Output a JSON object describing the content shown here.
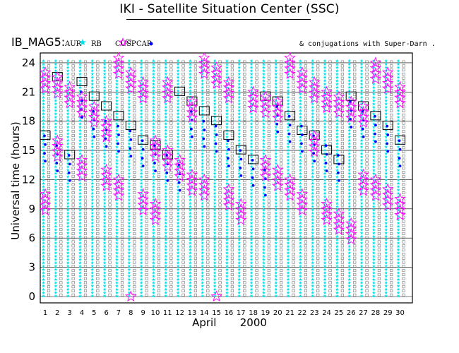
{
  "header": {
    "title": "IKI - Satellite Situation Center (SSC)"
  },
  "legend": {
    "prefix": "IB_MAG5:",
    "items": [
      {
        "label": "AUR",
        "marker": "star-filled",
        "color": "#00e5ee"
      },
      {
        "label": "RB",
        "marker": "none",
        "color": "#000000"
      },
      {
        "label": "CUSP",
        "marker": "open-square",
        "color": "#555555"
      },
      {
        "label": "CAP",
        "marker": "open-star",
        "color": "#ff00ff"
      },
      {
        "label": "",
        "marker": "dot",
        "color": "#0000ff"
      }
    ],
    "note": "& conjugations with Super-Darn ."
  },
  "colors": {
    "aur": "#00e5ee",
    "cusp": "#666666",
    "cap": "#ff00ff",
    "conj": "#0000ff",
    "axis": "#000000"
  },
  "chart_data": {
    "type": "scatter",
    "title": "IKI - Satellite Situation Center (SSC)",
    "xlabel": "April       2000",
    "ylabel": "Universal time (hours)",
    "xlim": [
      1,
      31
    ],
    "ylim": [
      0,
      24.5
    ],
    "x_ticks": [
      1,
      2,
      3,
      4,
      5,
      6,
      7,
      8,
      9,
      10,
      11,
      12,
      13,
      14,
      15,
      16,
      17,
      18,
      19,
      20,
      21,
      22,
      23,
      24,
      25,
      26,
      27,
      28,
      29,
      30
    ],
    "y_ticks": [
      0,
      3,
      6,
      9,
      12,
      15,
      18,
      21,
      24
    ],
    "grid": "horizontal",
    "series": [
      {
        "name": "AUR",
        "marker": "cyan star",
        "note": "continuous columns of passes from 0 to 24 h"
      },
      {
        "name": "CUSP",
        "marker": "open square",
        "note": "continuous columns of passes from 0 to 24 h"
      },
      {
        "name": "CAP",
        "x": [
          1,
          1,
          2,
          2,
          3,
          4,
          4,
          5,
          6,
          6,
          7,
          7,
          8,
          8,
          9,
          9,
          10,
          10,
          11,
          11,
          12,
          13,
          13,
          14,
          14,
          15,
          15,
          16,
          16,
          17,
          18,
          19,
          19,
          20,
          20,
          21,
          21,
          22,
          22,
          23,
          23,
          24,
          24,
          25,
          25,
          26,
          26,
          27,
          27,
          28,
          28,
          29,
          29,
          30,
          30
        ],
        "y": [
          10.5,
          23,
          16,
          22.5,
          21.5,
          14,
          20.5,
          19.5,
          13,
          18,
          12,
          24.5,
          0,
          23,
          10.5,
          22,
          9.5,
          16,
          15,
          22,
          14,
          12.5,
          20,
          24.5,
          12,
          0,
          23.5,
          11,
          22,
          9.5,
          21,
          14,
          20.5,
          13,
          20,
          12,
          24.5,
          10.5,
          23,
          16.5,
          22,
          9.5,
          21,
          8.5,
          20.5,
          7.5,
          20,
          12.5,
          19.5,
          12,
          24,
          11,
          23,
          10,
          21.5
        ]
      },
      {
        "name": "",
        "marker": "blue dot",
        "x": [
          1,
          2,
          3,
          4,
          5,
          6,
          7,
          8,
          9,
          10,
          11,
          12,
          13,
          14,
          15,
          16,
          17,
          18,
          19,
          20,
          21,
          22,
          23,
          24,
          25,
          26,
          27,
          28,
          29,
          30
        ],
        "y": [
          16.5,
          15.5,
          14.5,
          21,
          19,
          18,
          17.5,
          17,
          16,
          15.5,
          14.5,
          13.5,
          19,
          18,
          17.5,
          16,
          15,
          14,
          13,
          19.5,
          18.5,
          17.5,
          16.5,
          15.5,
          14.5,
          20,
          19,
          18.5,
          17.5,
          16
        ]
      },
      {
        "name": "RB",
        "marker": "black box",
        "x": [
          1,
          2,
          3,
          4,
          5,
          6,
          7,
          8,
          9,
          10,
          11,
          12,
          13,
          14,
          15,
          16,
          17,
          18,
          19,
          20,
          21,
          22,
          23,
          24,
          25,
          26,
          27,
          28,
          29,
          30
        ],
        "y": [
          16.5,
          22.5,
          14.5,
          22,
          20.5,
          19.5,
          18.5,
          17.5,
          16,
          15.5,
          14.5,
          21,
          20,
          19,
          18,
          16.5,
          15,
          14,
          20.5,
          20,
          18.5,
          17,
          16.5,
          15,
          14,
          20.5,
          19.5,
          18.5,
          17.5,
          16
        ]
      }
    ]
  }
}
